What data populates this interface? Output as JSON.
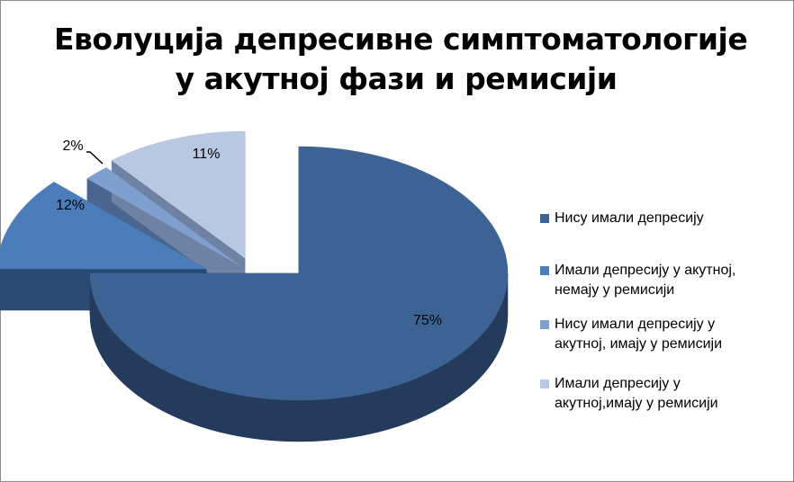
{
  "title_line1": "Еволуција депресивне симптоматологије",
  "title_line2": "у акутној фази и ремисији",
  "chart_data": {
    "type": "pie",
    "title": "Еволуција депресивне симптоматологије у акутној фази и ремисији",
    "exploded": true,
    "three_d": true,
    "legend_position": "right",
    "labels": [
      "Нису имали депресију",
      "Имали депресију у акутној, немају у ремисији",
      "Нису имали депресију у акутној, имају у ремисији",
      "Имали депресију у акутној,имају у ремисији"
    ],
    "legend_lines": [
      [
        "Нису имали депресију"
      ],
      [
        "Имали депресију у акутној,",
        "немају у ремисији"
      ],
      [
        "Нису имали депресију у",
        "акутној, имају у ремисији"
      ],
      [
        "Имали депресију у",
        "акутној,имају у ремисији"
      ]
    ],
    "values": [
      75,
      12,
      2,
      11
    ],
    "data_labels": [
      "75%",
      "12%",
      "2%",
      "11%"
    ],
    "colors": [
      "#3d6394",
      "#4b7dbb",
      "#7e9fd0",
      "#b8c8e3"
    ],
    "side_colors": [
      "#243b5c",
      "#2b4a73",
      "#4a6690",
      "#6e82a4"
    ]
  }
}
